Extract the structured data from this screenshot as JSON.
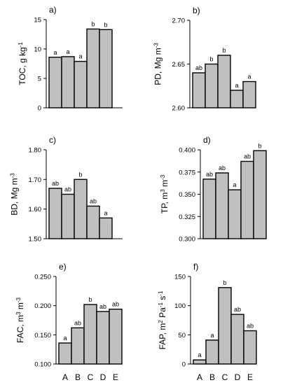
{
  "chart_data": [
    {
      "panel": "a)",
      "type": "bar",
      "categories": [
        "A",
        "B",
        "C",
        "D",
        "E"
      ],
      "values": [
        8.6,
        8.7,
        7.9,
        13.4,
        13.3
      ],
      "significance": [
        "a",
        "a",
        "a",
        "b",
        "b"
      ],
      "ylabel_parts": [
        {
          "t": "TOC, g kg"
        },
        {
          "t": "-1",
          "sup": true
        }
      ],
      "ylim": [
        0,
        15
      ],
      "yticks": [
        0,
        5,
        10,
        15
      ],
      "ytick_labels": [
        "0",
        "5",
        "10",
        "15"
      ],
      "show_xlabels": false
    },
    {
      "panel": "b)",
      "type": "bar",
      "categories": [
        "A",
        "B",
        "C",
        "D",
        "E"
      ],
      "values": [
        2.64,
        2.65,
        2.66,
        2.62,
        2.63
      ],
      "significance": [
        "ab",
        "b",
        "b",
        "a",
        "a"
      ],
      "ylabel_parts": [
        {
          "t": "PD, Mg m"
        },
        {
          "t": "-3",
          "sup": true
        }
      ],
      "ylim": [
        2.6,
        2.7
      ],
      "yticks": [
        2.6,
        2.65,
        2.7
      ],
      "ytick_labels": [
        "2.60",
        "2.65",
        "2.70"
      ],
      "show_xlabels": false
    },
    {
      "panel": "c)",
      "type": "bar",
      "categories": [
        "A",
        "B",
        "C",
        "D",
        "E"
      ],
      "values": [
        1.67,
        1.65,
        1.7,
        1.61,
        1.57
      ],
      "significance": [
        "ab",
        "ab",
        "b",
        "ab",
        "a"
      ],
      "ylabel_parts": [
        {
          "t": "BD, Mg m"
        },
        {
          "t": "-3",
          "sup": true
        }
      ],
      "ylim": [
        1.5,
        1.8
      ],
      "yticks": [
        1.5,
        1.6,
        1.7,
        1.8
      ],
      "ytick_labels": [
        "1.50",
        "1.60",
        "1.70",
        "1.80"
      ],
      "show_xlabels": false
    },
    {
      "panel": "d)",
      "type": "bar",
      "categories": [
        "A",
        "B",
        "C",
        "D",
        "E"
      ],
      "values": [
        0.367,
        0.374,
        0.355,
        0.387,
        0.399
      ],
      "significance": [
        "ab",
        "ab",
        "a",
        "ab",
        "b"
      ],
      "ylabel_parts": [
        {
          "t": "TP, m"
        },
        {
          "t": "3",
          "sup": true
        },
        {
          "t": " m"
        },
        {
          "t": "-3",
          "sup": true
        }
      ],
      "ylim": [
        0.3,
        0.4
      ],
      "yticks": [
        0.3,
        0.325,
        0.35,
        0.375,
        0.4
      ],
      "ytick_labels": [
        "0.300",
        "0.325",
        "0.350",
        "0.375",
        "0.400"
      ],
      "show_xlabels": false
    },
    {
      "panel": "e)",
      "type": "bar",
      "categories": [
        "A",
        "B",
        "C",
        "D",
        "E"
      ],
      "values": [
        0.136,
        0.162,
        0.202,
        0.19,
        0.194
      ],
      "significance": [
        "a",
        "ab",
        "b",
        "ab",
        "ab"
      ],
      "ylabel_parts": [
        {
          "t": "FAC, m"
        },
        {
          "t": "3",
          "sup": true
        },
        {
          "t": " m"
        },
        {
          "t": "-3",
          "sup": true
        }
      ],
      "ylim": [
        0.1,
        0.25
      ],
      "yticks": [
        0.1,
        0.15,
        0.2,
        0.25
      ],
      "ytick_labels": [
        "0.100",
        "0.150",
        "0.200",
        "0.250"
      ],
      "show_xlabels": true
    },
    {
      "panel": "f)",
      "type": "bar",
      "categories": [
        "A",
        "B",
        "C",
        "D",
        "E"
      ],
      "values": [
        7,
        41,
        131,
        85,
        57
      ],
      "significance": [
        "a",
        "a",
        "b",
        "ab",
        "ab"
      ],
      "ylabel_parts": [
        {
          "t": "FAP, m"
        },
        {
          "t": "2",
          "sup": true
        },
        {
          "t": " Pa"
        },
        {
          "t": "-1",
          "sup": true
        },
        {
          "t": " s"
        },
        {
          "t": "-1",
          "sup": true
        }
      ],
      "ylim": [
        0,
        150
      ],
      "yticks": [
        0,
        50,
        100,
        150
      ],
      "ytick_labels": [
        "0",
        "50",
        "100",
        "150"
      ],
      "show_xlabels": true
    }
  ]
}
